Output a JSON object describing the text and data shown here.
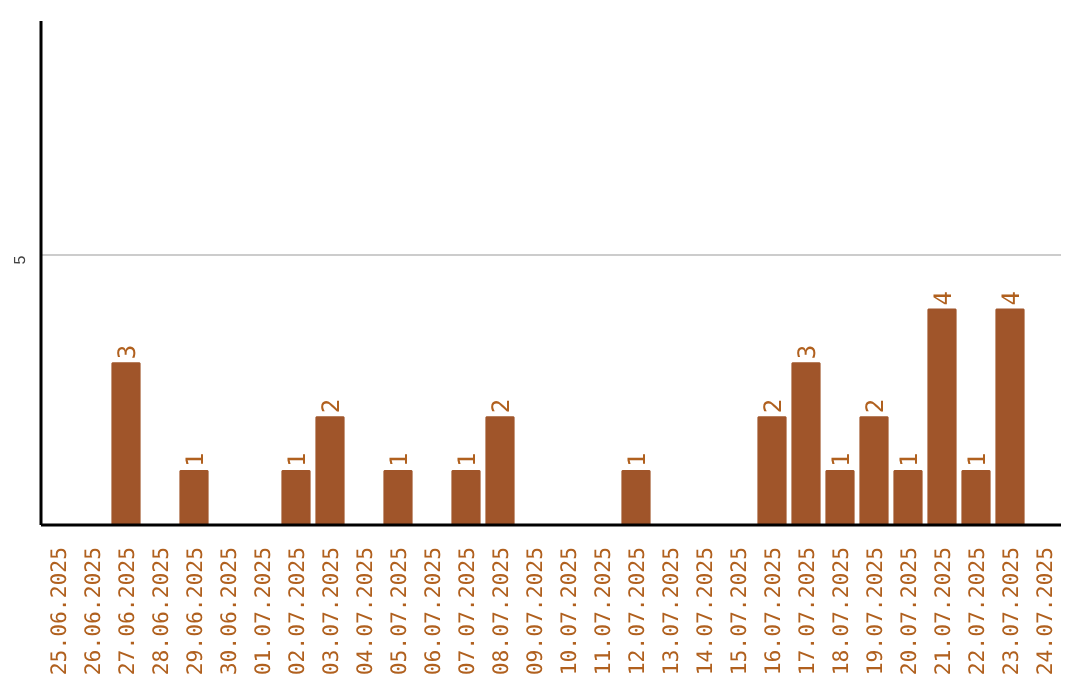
{
  "chart_data": {
    "type": "bar",
    "categories": [
      "25.06.2025",
      "26.06.2025",
      "27.06.2025",
      "28.06.2025",
      "29.06.2025",
      "30.06.2025",
      "01.07.2025",
      "02.07.2025",
      "03.07.2025",
      "04.07.2025",
      "05.07.2025",
      "06.07.2025",
      "07.07.2025",
      "08.07.2025",
      "09.07.2025",
      "10.07.2025",
      "11.07.2025",
      "12.07.2025",
      "13.07.2025",
      "14.07.2025",
      "15.07.2025",
      "16.07.2025",
      "17.07.2025",
      "18.07.2025",
      "19.07.2025",
      "20.07.2025",
      "21.07.2025",
      "22.07.2025",
      "23.07.2025",
      "24.07.2025"
    ],
    "values": [
      0,
      0,
      3,
      0,
      1,
      0,
      0,
      1,
      2,
      0,
      1,
      0,
      1,
      2,
      0,
      0,
      0,
      1,
      0,
      0,
      0,
      2,
      3,
      1,
      2,
      1,
      4,
      1,
      4,
      0
    ],
    "value_labels": [
      null,
      null,
      "3",
      null,
      "1",
      null,
      null,
      "1",
      "2",
      null,
      "1",
      null,
      "1",
      "2",
      null,
      null,
      null,
      "1",
      null,
      null,
      null,
      "2",
      "3",
      "1",
      "2",
      "1",
      "4",
      "1",
      "4",
      null
    ],
    "color": "#a0552a",
    "ylim": [
      0,
      9.35
    ],
    "yticks": [
      5
    ],
    "grid": "y"
  }
}
